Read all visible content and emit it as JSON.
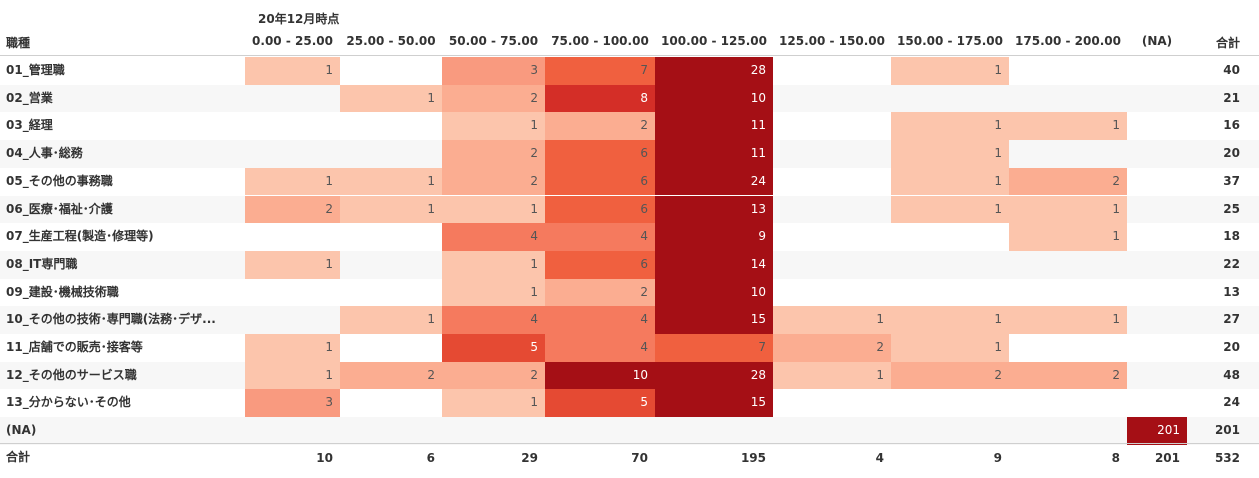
{
  "header": {
    "super_title": "20年12月時点",
    "row_header": "職種",
    "total_label": "合計"
  },
  "colors": {
    "scale": [
      "#fcc5ac",
      "#fbad91",
      "#f99a7f",
      "#f57a5e",
      "#f0603f",
      "#e54a33",
      "#d42e27",
      "#a50f15"
    ],
    "text_light": "#ffffff",
    "text_dark": "#555555"
  },
  "chart_data": {
    "type": "heatmap",
    "columns": [
      "0.00 - 25.00",
      "25.00 - 50.00",
      "50.00 - 75.00",
      "75.00 - 100.00",
      "100.00 - 125.00",
      "125.00 - 150.00",
      "150.00 - 175.00",
      "175.00 - 200.00",
      "(NA)"
    ],
    "rows": [
      {
        "label": "01_管理職",
        "values": [
          1,
          null,
          3,
          7,
          28,
          null,
          1,
          null,
          null
        ],
        "total": 40
      },
      {
        "label": "02_営業",
        "values": [
          null,
          1,
          2,
          8,
          10,
          null,
          null,
          null,
          null
        ],
        "total": 21
      },
      {
        "label": "03_経理",
        "values": [
          null,
          null,
          1,
          2,
          11,
          null,
          1,
          1,
          null
        ],
        "total": 16
      },
      {
        "label": "04_人事･総務",
        "values": [
          null,
          null,
          2,
          6,
          11,
          null,
          1,
          null,
          null
        ],
        "total": 20
      },
      {
        "label": "05_その他の事務職",
        "values": [
          1,
          1,
          2,
          6,
          24,
          null,
          1,
          2,
          null
        ],
        "total": 37
      },
      {
        "label": "06_医療･福祉･介護",
        "values": [
          2,
          1,
          1,
          6,
          13,
          null,
          1,
          1,
          null
        ],
        "total": 25
      },
      {
        "label": "07_生産工程(製造･修理等)",
        "values": [
          null,
          null,
          4,
          4,
          9,
          null,
          null,
          1,
          null
        ],
        "total": 18
      },
      {
        "label": "08_IT専門職",
        "values": [
          1,
          null,
          1,
          6,
          14,
          null,
          null,
          null,
          null
        ],
        "total": 22
      },
      {
        "label": "09_建設･機械技術職",
        "values": [
          null,
          null,
          1,
          2,
          10,
          null,
          null,
          null,
          null
        ],
        "total": 13
      },
      {
        "label": "10_その他の技術･専門職(法務･デザ...",
        "values": [
          null,
          1,
          4,
          4,
          15,
          1,
          1,
          1,
          null
        ],
        "total": 27
      },
      {
        "label": "11_店舗での販売･接客等",
        "values": [
          1,
          null,
          5,
          4,
          7,
          2,
          1,
          null,
          null
        ],
        "total": 20
      },
      {
        "label": "12_その他のサービス職",
        "values": [
          1,
          2,
          2,
          10,
          28,
          1,
          2,
          2,
          null
        ],
        "total": 48
      },
      {
        "label": "13_分からない･その他",
        "values": [
          3,
          null,
          1,
          5,
          15,
          null,
          null,
          null,
          null
        ],
        "total": 24
      },
      {
        "label": "(NA)",
        "values": [
          null,
          null,
          null,
          null,
          null,
          null,
          null,
          null,
          201
        ],
        "total": 201
      }
    ],
    "column_totals": [
      10,
      6,
      29,
      70,
      195,
      4,
      9,
      8,
      201
    ],
    "grand_total": 532
  }
}
